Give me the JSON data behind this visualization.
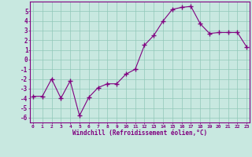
{
  "x": [
    0,
    1,
    2,
    3,
    4,
    5,
    6,
    7,
    8,
    9,
    10,
    11,
    12,
    13,
    14,
    15,
    16,
    17,
    18,
    19,
    20,
    21,
    22,
    23
  ],
  "y": [
    -3.8,
    -3.8,
    -2.0,
    -4.0,
    -2.2,
    -5.8,
    -3.9,
    -2.9,
    -2.5,
    -2.5,
    -1.5,
    -1.0,
    1.5,
    2.5,
    4.0,
    5.2,
    5.4,
    5.5,
    3.7,
    2.7,
    2.8,
    2.8,
    2.8,
    1.3
  ],
  "ylim": [
    -6.5,
    6.0
  ],
  "yticks": [
    -6,
    -5,
    -4,
    -3,
    -2,
    -1,
    0,
    1,
    2,
    3,
    4,
    5
  ],
  "xticks": [
    0,
    1,
    2,
    3,
    4,
    5,
    6,
    7,
    8,
    9,
    10,
    11,
    12,
    13,
    14,
    15,
    16,
    17,
    18,
    19,
    20,
    21,
    22,
    23
  ],
  "xlabel": "Windchill (Refroidissement éolien,°C)",
  "line_color": "#800080",
  "marker_color": "#800080",
  "bg_color": "#c8e8e0",
  "grid_color": "#90c8b8",
  "axis_color": "#800080",
  "tick_color": "#800080",
  "xlabel_color": "#800080",
  "title": ""
}
